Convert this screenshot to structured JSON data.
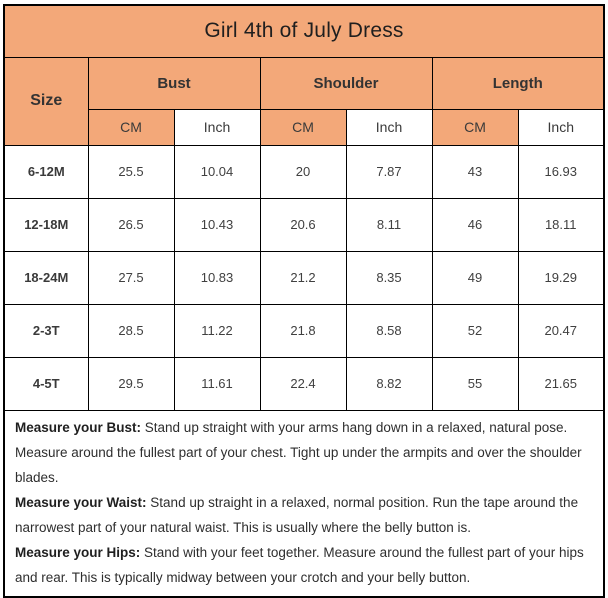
{
  "title": "Girl 4th of July Dress",
  "colors": {
    "accent": "#F3A879",
    "border": "#000000",
    "text": "#3d3d3d"
  },
  "table": {
    "size_header": "Size",
    "groups": [
      {
        "label": "Bust"
      },
      {
        "label": "Shoulder"
      },
      {
        "label": "Length"
      }
    ],
    "units": {
      "cm": "CM",
      "inch": "Inch"
    },
    "rows": [
      {
        "size": "6-12M",
        "values": [
          "25.5",
          "10.04",
          "20",
          "7.87",
          "43",
          "16.93"
        ]
      },
      {
        "size": "12-18M",
        "values": [
          "26.5",
          "10.43",
          "20.6",
          "8.11",
          "46",
          "18.11"
        ]
      },
      {
        "size": "18-24M",
        "values": [
          "27.5",
          "10.83",
          "21.2",
          "8.35",
          "49",
          "19.29"
        ]
      },
      {
        "size": "2-3T",
        "values": [
          "28.5",
          "11.22",
          "21.8",
          "8.58",
          "52",
          "20.47"
        ]
      },
      {
        "size": "4-5T",
        "values": [
          "29.5",
          "11.61",
          "22.4",
          "8.82",
          "55",
          "21.65"
        ]
      }
    ]
  },
  "notes": [
    {
      "label": "Measure your Bust:",
      "text": " Stand up straight with your arms hang down in a relaxed, natural pose. Measure around the fullest part of your chest. Tight up under the armpits and over the shoulder blades."
    },
    {
      "label": "Measure your Waist:",
      "text": " Stand up straight in a relaxed, normal position. Run the tape around the narrowest part of your natural waist. This is usually where the belly button is."
    },
    {
      "label": "Measure your Hips:",
      "text": " Stand with your feet together. Measure around the fullest part of your hips and rear. This is typically midway between your crotch and your belly button."
    }
  ]
}
